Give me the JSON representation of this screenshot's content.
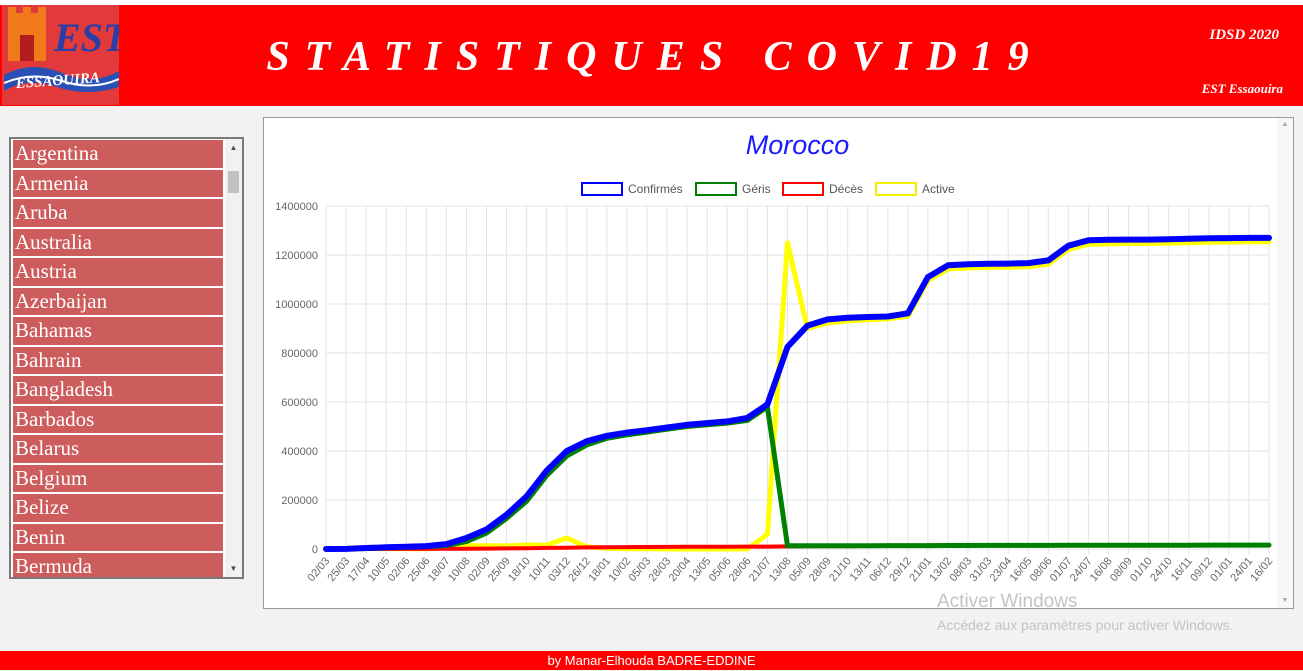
{
  "header": {
    "title": "STATISTIQUES COVID19",
    "right_top": "IDSD 2020",
    "right_bottom": "EST Essaouira",
    "logo_text": "EST ESSAOUIRA"
  },
  "countries": [
    "Argentina",
    "Armenia",
    "Aruba",
    "Australia",
    "Austria",
    "Azerbaijan",
    "Bahamas",
    "Bahrain",
    "Bangladesh",
    "Barbados",
    "Belarus",
    "Belgium",
    "Belize",
    "Benin",
    "Bermuda"
  ],
  "chart_data": {
    "type": "line",
    "title": "Morocco",
    "legend_position": "top",
    "grid": true,
    "ylim": [
      0,
      1400000
    ],
    "y_ticks": [
      "1400000",
      "1200000",
      "1000000",
      "800000",
      "600000",
      "400000",
      "200000",
      "0"
    ],
    "x_tick_labels": [
      "02/03",
      "25/03",
      "17/04",
      "10/05",
      "02/06",
      "25/06",
      "18/07",
      "10/08",
      "02/09",
      "25/09",
      "18/10",
      "10/11",
      "03/12",
      "26/12",
      "18/01",
      "10/02",
      "05/03",
      "28/03",
      "20/04",
      "13/05",
      "05/06",
      "28/06",
      "21/07",
      "13/08",
      "05/09",
      "28/09",
      "21/10",
      "13/11",
      "06/12",
      "29/12",
      "21/01",
      "13/02",
      "08/03",
      "31/03",
      "23/04",
      "16/05",
      "08/06",
      "01/07",
      "24/07",
      "16/08",
      "08/09",
      "01/10",
      "24/10",
      "16/11",
      "09/12",
      "01/01",
      "24/01",
      "16/02"
    ],
    "series": [
      {
        "name": "Confirmés",
        "color": "#0000ff",
        "values": [
          0,
          300,
          4000,
          7000,
          9000,
          12000,
          20000,
          45000,
          80000,
          140000,
          215000,
          320000,
          400000,
          440000,
          462000,
          475000,
          485000,
          496000,
          507000,
          514000,
          521000,
          535000,
          590000,
          825000,
          912000,
          937000,
          944000,
          947000,
          949000,
          962000,
          1110000,
          1158000,
          1162000,
          1164000,
          1165000,
          1167000,
          1178000,
          1238000,
          1260000,
          1262000,
          1263000,
          1263000,
          1264000,
          1266000,
          1268000,
          1269000,
          1270000,
          1270000
        ]
      },
      {
        "name": "Géris",
        "color": "#008000",
        "values": [
          0,
          100,
          2000,
          5000,
          7500,
          10000,
          14000,
          30000,
          65000,
          125000,
          195000,
          300000,
          380000,
          425000,
          452000,
          466000,
          477000,
          489000,
          500000,
          507000,
          514000,
          525000,
          580000,
          13000,
          13200,
          13400,
          13500,
          13600,
          13700,
          13800,
          14000,
          14200,
          14400,
          14500,
          14600,
          14700,
          14800,
          15000,
          15200,
          15300,
          15400,
          15500,
          15600,
          15700,
          15800,
          15900,
          16000,
          16000
        ]
      },
      {
        "name": "Décès",
        "color": "#ff0000",
        "values": [
          0,
          100,
          200,
          300,
          400,
          500,
          800,
          1200,
          1800,
          2500,
          3300,
          4500,
          5500,
          6500,
          7300,
          7900,
          8300,
          8700,
          9000,
          9200,
          9400,
          9600,
          10000,
          10800,
          11400,
          11800,
          12000,
          12200,
          12300,
          12600,
          13500,
          14300,
          14600,
          14800,
          14900,
          15000,
          15200,
          15700,
          16000,
          16100,
          16200,
          16200,
          16250,
          16300,
          16300,
          16350,
          16400,
          16400
        ]
      },
      {
        "name": "Active",
        "color": "#ffff00",
        "values": [
          0,
          150,
          1800,
          1700,
          1100,
          1500,
          5200,
          13800,
          13200,
          12500,
          16700,
          15500,
          45000,
          8500,
          2700,
          1200,
          700,
          -700,
          -2000,
          -2200,
          -2400,
          400,
          60000,
          1250000,
          900000,
          922000,
          931000,
          936000,
          939000,
          950000,
          1095000,
          1143000,
          1147000,
          1149000,
          1150000,
          1152000,
          1163000,
          1222000,
          1244000,
          1246000,
          1247000,
          1247000,
          1248000,
          1250000,
          1252000,
          1253000,
          1254000,
          1254000
        ]
      }
    ]
  },
  "watermark": {
    "line1": "Activer Windows",
    "line2": "Accédez aux paramètres pour activer Windows."
  },
  "footer": {
    "text": "by Manar-Elhouda BADRE-EDDINE"
  }
}
